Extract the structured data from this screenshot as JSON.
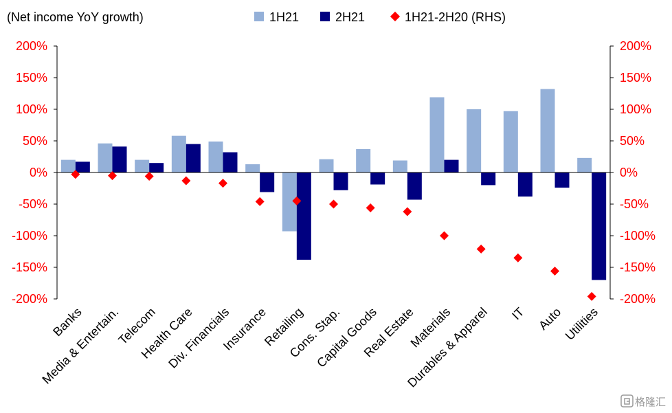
{
  "chart_data": {
    "type": "bar",
    "title": "(Net income YoY growth)",
    "categories": [
      "Banks",
      "Media & Entertain.",
      "Telecom",
      "Health Care",
      "Div. Financials",
      "Insurance",
      "Retailing",
      "Cons. Stap.",
      "Capital Goods",
      "Real Estate",
      "Materials",
      "Durables & Apparel",
      "IT",
      "Auto",
      "Utilities"
    ],
    "series": [
      {
        "name": "1H21",
        "kind": "bar",
        "color": "#94b0d8",
        "values": [
          20,
          46,
          20,
          58,
          49,
          13,
          -93,
          21,
          37,
          19,
          119,
          100,
          97,
          132,
          23
        ]
      },
      {
        "name": "2H21",
        "kind": "bar",
        "color": "#000080",
        "values": [
          17,
          41,
          15,
          45,
          32,
          -31,
          -138,
          -28,
          -19,
          -43,
          20,
          -20,
          -38,
          -24,
          -170
        ]
      },
      {
        "name": "1H21-2H20 (RHS)",
        "kind": "marker",
        "color": "#ff0000",
        "values": [
          -3,
          -5,
          -6,
          -13,
          -17,
          -46,
          -45,
          -50,
          -56,
          -62,
          -100,
          -121,
          -135,
          -156,
          -196
        ]
      }
    ],
    "ylim": [
      -200,
      200
    ],
    "y2lim": [
      -200,
      200
    ],
    "yticks": [
      "200%",
      "150%",
      "100%",
      "50%",
      "0%",
      "-50%",
      "-100%",
      "-150%",
      "-200%"
    ],
    "y2ticks": [
      "200%",
      "150%",
      "100%",
      "50%",
      "0%",
      "-50%",
      "-100%",
      "-150%",
      "-200%"
    ],
    "grid": false,
    "legend_position": "top"
  },
  "watermark": "格隆汇"
}
